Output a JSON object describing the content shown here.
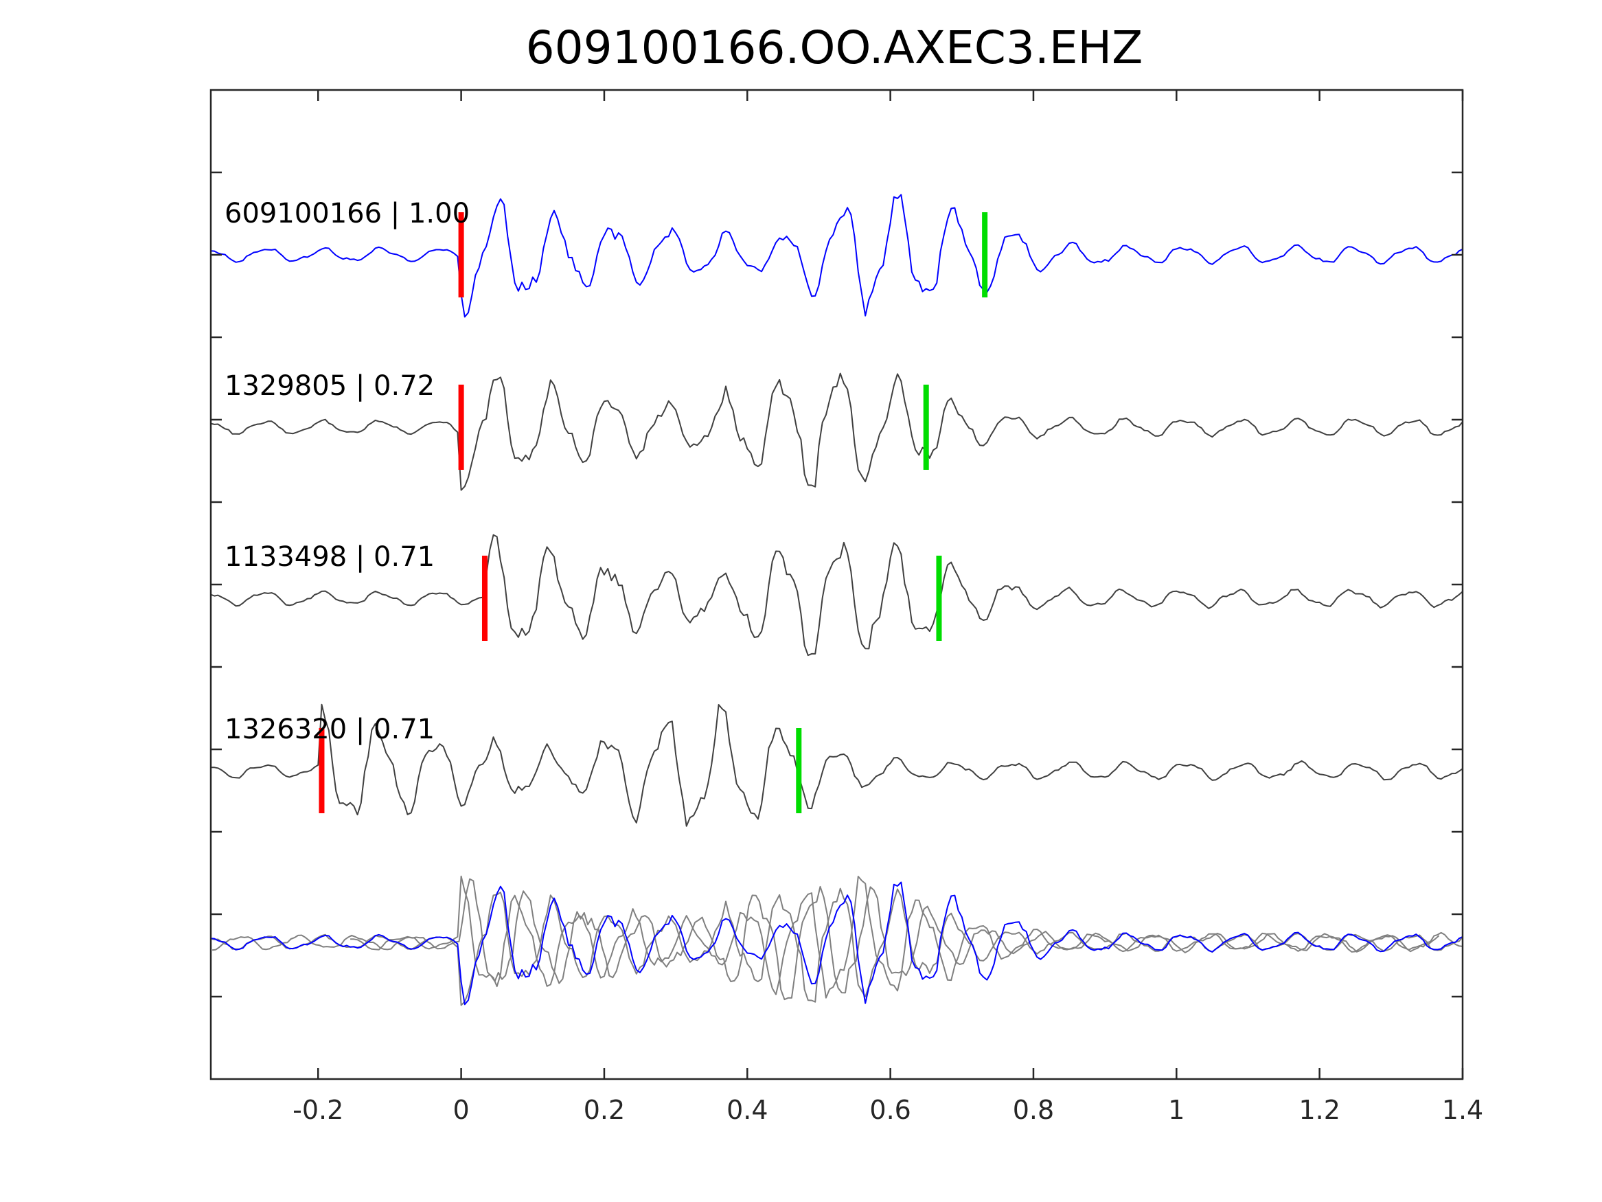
{
  "chart_data": {
    "type": "line",
    "title": "609100166.OO.AXEC3.EHZ",
    "xlabel": "",
    "ylabel": "",
    "xlim": [
      -0.35,
      1.4
    ],
    "xticks": [
      -0.2,
      0,
      0.2,
      0.4,
      0.6,
      0.8,
      1,
      1.2,
      1.4
    ],
    "xtick_labels": [
      "-0.2",
      "0",
      "0.2",
      "0.4",
      "0.6",
      "0.8",
      "1",
      "1.2",
      "1.4"
    ],
    "y_tick_count": 12,
    "grid": false,
    "colors": {
      "reference": "#0000ff",
      "match": "#404040",
      "overlay_match": "#808080",
      "p_pick": "#ff0000",
      "s_pick": "#00dd00"
    },
    "series": [
      {
        "label": "609100166 | 1.00",
        "event_id": "609100166",
        "cc": 1.0,
        "p_pick": 0.0,
        "s_pick": 0.732,
        "shift": 0.0,
        "reference": true
      },
      {
        "label": "1329805 | 0.72",
        "event_id": "1329805",
        "cc": 0.72,
        "p_pick": 0.0,
        "s_pick": 0.65,
        "shift": 0.0,
        "reference": false
      },
      {
        "label": "1133498 | 0.71",
        "event_id": "1133498",
        "cc": 0.71,
        "p_pick": 0.033,
        "s_pick": 0.668,
        "shift": 0.033,
        "reference": false
      },
      {
        "label": "1326320 | 0.71",
        "event_id": "1326320",
        "cc": 0.71,
        "p_pick": -0.195,
        "s_pick": 0.472,
        "shift": -0.195,
        "reference": false
      }
    ],
    "overlay": "all traces aligned on reference P pick"
  }
}
